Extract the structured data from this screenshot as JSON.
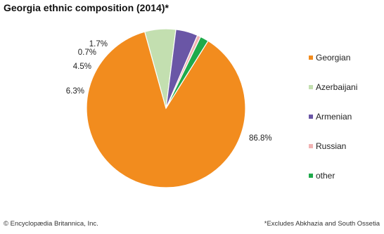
{
  "title": "Georgia ethnic composition (2014)*",
  "chart_data": {
    "type": "pie",
    "title": "Georgia ethnic composition (2014)*",
    "slices": [
      {
        "name": "Georgian",
        "value": 86.8,
        "label": "86.8%",
        "color": "#f28c1e"
      },
      {
        "name": "Azerbaijani",
        "value": 6.3,
        "label": "6.3%",
        "color": "#c3dfb0"
      },
      {
        "name": "Armenian",
        "value": 4.5,
        "label": "4.5%",
        "color": "#6a56a6"
      },
      {
        "name": "Russian",
        "value": 0.7,
        "label": "0.7%",
        "color": "#f2b3b3"
      },
      {
        "name": "other",
        "value": 1.7,
        "label": "1.7%",
        "color": "#1faa4b"
      }
    ],
    "legend": "right"
  },
  "footer": {
    "credit": "© Encyclopædia Britannica, Inc.",
    "note": "*Excludes Abkhazia and South Ossetia"
  }
}
